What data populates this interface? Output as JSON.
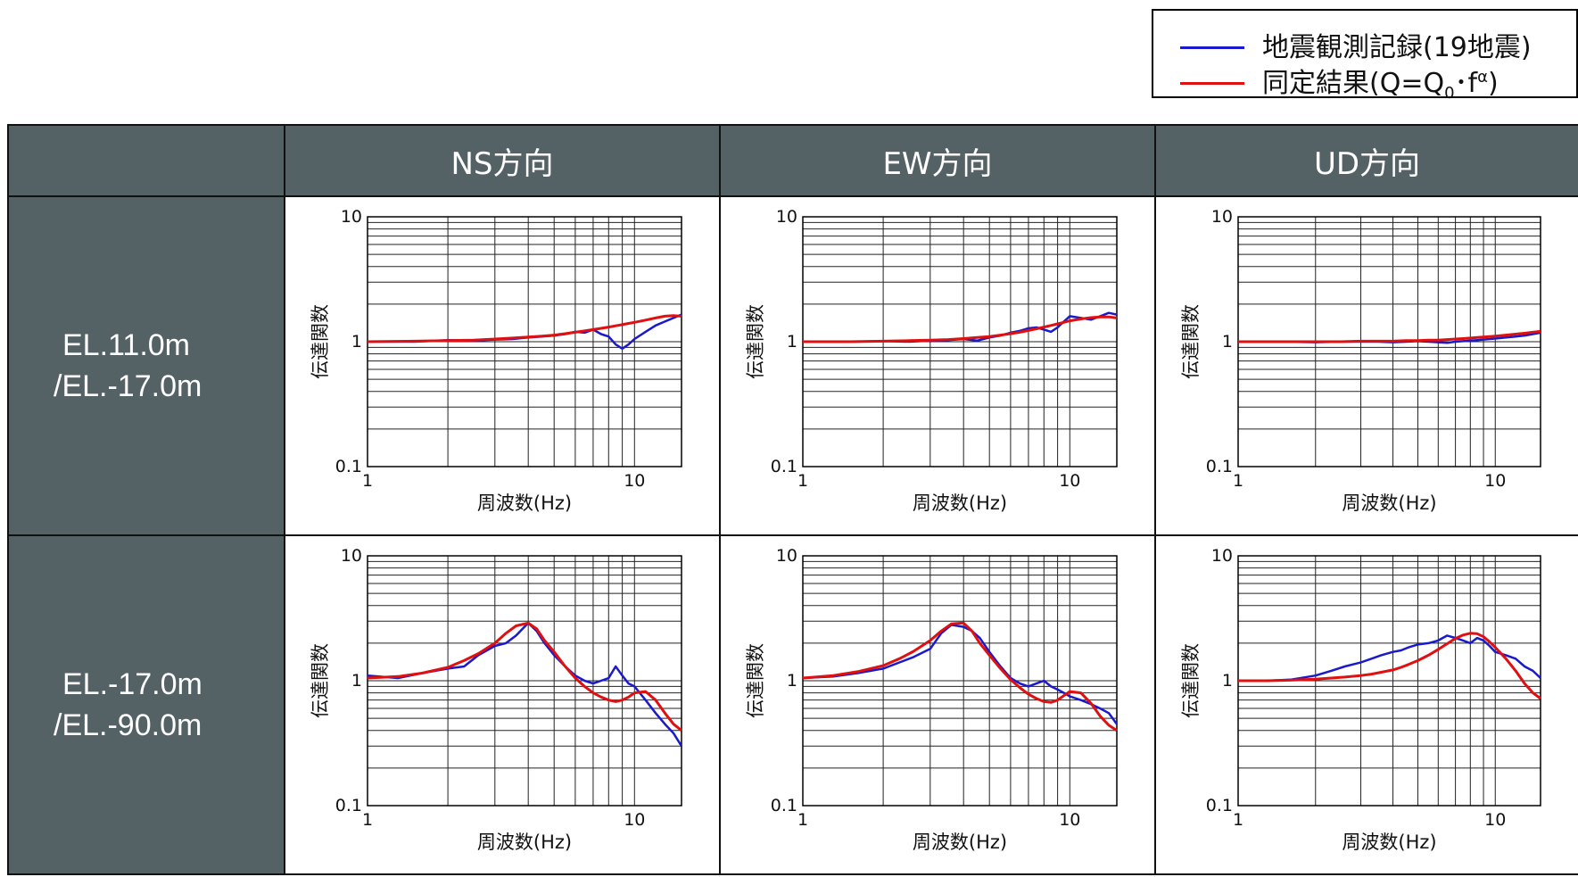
{
  "legend": {
    "observed": {
      "label": "地震観測記録(19地震)",
      "color": "#1a1acc"
    },
    "fitted": {
      "label_prefix": "同定結果(Q=Q",
      "label_sub": "0",
      "label_mid": "･f",
      "label_sup": "α",
      "label_suffix": ")",
      "color": "#e01010"
    }
  },
  "columns": [
    "NS方向",
    "EW方向",
    "UD方向"
  ],
  "rows": [
    {
      "label_line1": "EL.11.0m",
      "label_line2": "/EL.-17.0m"
    },
    {
      "label_line1": "EL.-17.0m",
      "label_line2": "/EL.-90.0m"
    }
  ],
  "axis": {
    "xlabel": "周波数(Hz)",
    "ylabel": "伝達関数",
    "x_ticks": [
      "1",
      "10"
    ],
    "y_ticks": [
      "10",
      "1",
      "0.1"
    ]
  },
  "chart_data": [
    {
      "type": "line",
      "row": "EL.11.0m/EL.-17.0m",
      "column": "NS方向",
      "xscale": "log",
      "yscale": "log",
      "xlim": [
        1,
        15
      ],
      "ylim": [
        0.1,
        10
      ],
      "grid": true,
      "series": [
        {
          "name": "地震観測記録(19地震)",
          "x": [
            1,
            1.5,
            2,
            2.5,
            3,
            3.5,
            4,
            4.5,
            5,
            5.5,
            6,
            6.5,
            7,
            7.5,
            8,
            8.5,
            9,
            9.5,
            10,
            11,
            12,
            13,
            14,
            15
          ],
          "y": [
            1.0,
            1.0,
            1.03,
            1.02,
            1.04,
            1.05,
            1.08,
            1.1,
            1.12,
            1.15,
            1.2,
            1.18,
            1.25,
            1.15,
            1.1,
            0.95,
            0.88,
            0.95,
            1.05,
            1.2,
            1.35,
            1.45,
            1.55,
            1.65
          ]
        },
        {
          "name": "同定結果(Q=Q0･fα)",
          "x": [
            1,
            1.5,
            2,
            2.5,
            3,
            3.5,
            4,
            4.5,
            5,
            5.5,
            6,
            6.5,
            7,
            7.5,
            8,
            8.5,
            9,
            9.5,
            10,
            11,
            12,
            13,
            14,
            15
          ],
          "y": [
            1.0,
            1.01,
            1.02,
            1.03,
            1.05,
            1.07,
            1.09,
            1.11,
            1.13,
            1.16,
            1.19,
            1.22,
            1.25,
            1.28,
            1.31,
            1.34,
            1.37,
            1.4,
            1.43,
            1.49,
            1.55,
            1.6,
            1.62,
            1.6
          ]
        }
      ]
    },
    {
      "type": "line",
      "row": "EL.11.0m/EL.-17.0m",
      "column": "EW方向",
      "xscale": "log",
      "yscale": "log",
      "xlim": [
        1,
        15
      ],
      "ylim": [
        0.1,
        10
      ],
      "grid": true,
      "series": [
        {
          "name": "地震観測記録(19地震)",
          "x": [
            1,
            1.5,
            2,
            2.5,
            3,
            3.5,
            4,
            4.5,
            5,
            5.5,
            6,
            6.5,
            7,
            7.5,
            8,
            8.5,
            9,
            9.5,
            10,
            11,
            12,
            13,
            14,
            15
          ],
          "y": [
            1.0,
            1.0,
            1.01,
            1.0,
            1.02,
            1.03,
            1.05,
            1.02,
            1.08,
            1.12,
            1.18,
            1.22,
            1.28,
            1.3,
            1.25,
            1.2,
            1.3,
            1.45,
            1.6,
            1.55,
            1.5,
            1.6,
            1.7,
            1.65
          ]
        },
        {
          "name": "同定結果(Q=Q0･fα)",
          "x": [
            1,
            1.5,
            2,
            2.5,
            3,
            3.5,
            4,
            4.5,
            5,
            5.5,
            6,
            6.5,
            7,
            7.5,
            8,
            8.5,
            9,
            9.5,
            10,
            11,
            12,
            13,
            14,
            15
          ],
          "y": [
            1.0,
            1.0,
            1.01,
            1.02,
            1.03,
            1.04,
            1.06,
            1.08,
            1.1,
            1.13,
            1.16,
            1.19,
            1.23,
            1.27,
            1.31,
            1.35,
            1.39,
            1.43,
            1.47,
            1.52,
            1.56,
            1.58,
            1.58,
            1.55
          ]
        }
      ]
    },
    {
      "type": "line",
      "row": "EL.11.0m/EL.-17.0m",
      "column": "UD方向",
      "xscale": "log",
      "yscale": "log",
      "xlim": [
        1,
        15
      ],
      "ylim": [
        0.1,
        10
      ],
      "grid": true,
      "series": [
        {
          "name": "地震観測記録(19地震)",
          "x": [
            1,
            1.5,
            2,
            2.5,
            3,
            3.5,
            4,
            4.5,
            5,
            5.5,
            6,
            6.5,
            7,
            7.5,
            8,
            8.5,
            9,
            9.5,
            10,
            11,
            12,
            13,
            14,
            15
          ],
          "y": [
            1.0,
            1.0,
            0.99,
            1.0,
            1.0,
            1.0,
            0.99,
            1.0,
            1.01,
            1.0,
            0.99,
            0.98,
            1.0,
            1.01,
            1.02,
            1.03,
            1.04,
            1.05,
            1.06,
            1.08,
            1.1,
            1.12,
            1.15,
            1.18
          ]
        },
        {
          "name": "同定結果(Q=Q0･fα)",
          "x": [
            1,
            1.5,
            2,
            2.5,
            3,
            3.5,
            4,
            4.5,
            5,
            5.5,
            6,
            6.5,
            7,
            7.5,
            8,
            8.5,
            9,
            9.5,
            10,
            11,
            12,
            13,
            14,
            15
          ],
          "y": [
            1.0,
            1.0,
            1.0,
            1.0,
            1.01,
            1.01,
            1.01,
            1.02,
            1.02,
            1.03,
            1.03,
            1.04,
            1.05,
            1.06,
            1.07,
            1.08,
            1.09,
            1.1,
            1.11,
            1.13,
            1.15,
            1.17,
            1.19,
            1.21
          ]
        }
      ]
    },
    {
      "type": "line",
      "row": "EL.-17.0m/EL.-90.0m",
      "column": "NS方向",
      "xscale": "log",
      "yscale": "log",
      "xlim": [
        1,
        15
      ],
      "ylim": [
        0.1,
        10
      ],
      "grid": true,
      "series": [
        {
          "name": "地震観測記録(19地震)",
          "x": [
            1,
            1.3,
            1.6,
            2,
            2.3,
            2.6,
            3,
            3.3,
            3.6,
            4,
            4.3,
            4.6,
            5,
            5.5,
            6,
            6.5,
            7,
            7.5,
            8,
            8.5,
            9,
            9.5,
            10,
            11,
            12,
            13,
            14,
            15
          ],
          "y": [
            1.1,
            1.05,
            1.15,
            1.25,
            1.3,
            1.6,
            1.9,
            2.0,
            2.3,
            2.9,
            2.5,
            2.0,
            1.6,
            1.3,
            1.1,
            1.0,
            0.95,
            1.0,
            1.05,
            1.3,
            1.1,
            0.95,
            0.9,
            0.7,
            0.55,
            0.45,
            0.38,
            0.3
          ]
        },
        {
          "name": "同定結果(Q=Q0･fα)",
          "x": [
            1,
            1.3,
            1.6,
            2,
            2.3,
            2.6,
            3,
            3.3,
            3.6,
            4,
            4.3,
            4.6,
            5,
            5.5,
            6,
            6.5,
            7,
            7.5,
            8,
            8.5,
            9,
            9.5,
            10,
            11,
            12,
            13,
            14,
            15
          ],
          "y": [
            1.05,
            1.08,
            1.15,
            1.28,
            1.45,
            1.65,
            2.0,
            2.4,
            2.75,
            2.9,
            2.6,
            2.1,
            1.7,
            1.3,
            1.05,
            0.9,
            0.8,
            0.74,
            0.7,
            0.68,
            0.7,
            0.74,
            0.8,
            0.82,
            0.7,
            0.55,
            0.45,
            0.4
          ]
        }
      ]
    },
    {
      "type": "line",
      "row": "EL.-17.0m/EL.-90.0m",
      "column": "EW方向",
      "xscale": "log",
      "yscale": "log",
      "xlim": [
        1,
        15
      ],
      "ylim": [
        0.1,
        10
      ],
      "grid": true,
      "series": [
        {
          "name": "地震観測記録(19地震)",
          "x": [
            1,
            1.3,
            1.6,
            2,
            2.3,
            2.6,
            3,
            3.3,
            3.6,
            4,
            4.3,
            4.6,
            5,
            5.5,
            6,
            6.5,
            7,
            7.5,
            8,
            8.5,
            9,
            9.5,
            10,
            11,
            12,
            13,
            14,
            15
          ],
          "y": [
            1.05,
            1.08,
            1.15,
            1.25,
            1.4,
            1.55,
            1.8,
            2.4,
            2.8,
            2.7,
            2.5,
            2.2,
            1.7,
            1.3,
            1.05,
            0.95,
            0.9,
            0.95,
            1.0,
            0.9,
            0.85,
            0.8,
            0.75,
            0.7,
            0.65,
            0.6,
            0.55,
            0.45
          ]
        },
        {
          "name": "同定結果(Q=Q0･fα)",
          "x": [
            1,
            1.3,
            1.6,
            2,
            2.3,
            2.6,
            3,
            3.3,
            3.6,
            4,
            4.3,
            4.6,
            5,
            5.5,
            6,
            6.5,
            7,
            7.5,
            8,
            8.5,
            9,
            9.5,
            10,
            11,
            12,
            13,
            14,
            15
          ],
          "y": [
            1.05,
            1.1,
            1.18,
            1.32,
            1.5,
            1.72,
            2.1,
            2.5,
            2.85,
            2.9,
            2.5,
            2.0,
            1.6,
            1.25,
            1.02,
            0.88,
            0.78,
            0.72,
            0.68,
            0.67,
            0.7,
            0.76,
            0.82,
            0.8,
            0.66,
            0.52,
            0.44,
            0.4
          ]
        }
      ]
    },
    {
      "type": "line",
      "row": "EL.-17.0m/EL.-90.0m",
      "column": "UD方向",
      "xscale": "log",
      "yscale": "log",
      "xlim": [
        1,
        15
      ],
      "ylim": [
        0.1,
        10
      ],
      "grid": true,
      "series": [
        {
          "name": "地震観測記録(19地震)",
          "x": [
            1,
            1.3,
            1.6,
            2,
            2.3,
            2.6,
            3,
            3.3,
            3.6,
            4,
            4.3,
            4.6,
            5,
            5.5,
            6,
            6.5,
            7,
            7.5,
            8,
            8.5,
            9,
            9.5,
            10,
            11,
            12,
            13,
            14,
            15
          ],
          "y": [
            1.0,
            1.0,
            1.02,
            1.1,
            1.2,
            1.3,
            1.4,
            1.5,
            1.6,
            1.7,
            1.75,
            1.85,
            1.95,
            2.0,
            2.1,
            2.3,
            2.2,
            2.1,
            2.0,
            2.2,
            2.1,
            1.9,
            1.7,
            1.6,
            1.5,
            1.3,
            1.2,
            1.05
          ]
        },
        {
          "name": "同定結果(Q=Q0･fα)",
          "x": [
            1,
            1.3,
            1.6,
            2,
            2.3,
            2.6,
            3,
            3.3,
            3.6,
            4,
            4.3,
            4.6,
            5,
            5.5,
            6,
            6.5,
            7,
            7.5,
            8,
            8.5,
            9,
            9.5,
            10,
            11,
            12,
            13,
            14,
            15
          ],
          "y": [
            1.0,
            1.0,
            1.01,
            1.03,
            1.05,
            1.07,
            1.1,
            1.13,
            1.17,
            1.22,
            1.28,
            1.35,
            1.45,
            1.6,
            1.78,
            1.98,
            2.18,
            2.32,
            2.4,
            2.38,
            2.25,
            2.05,
            1.85,
            1.5,
            1.2,
            0.95,
            0.8,
            0.72
          ]
        }
      ]
    }
  ]
}
